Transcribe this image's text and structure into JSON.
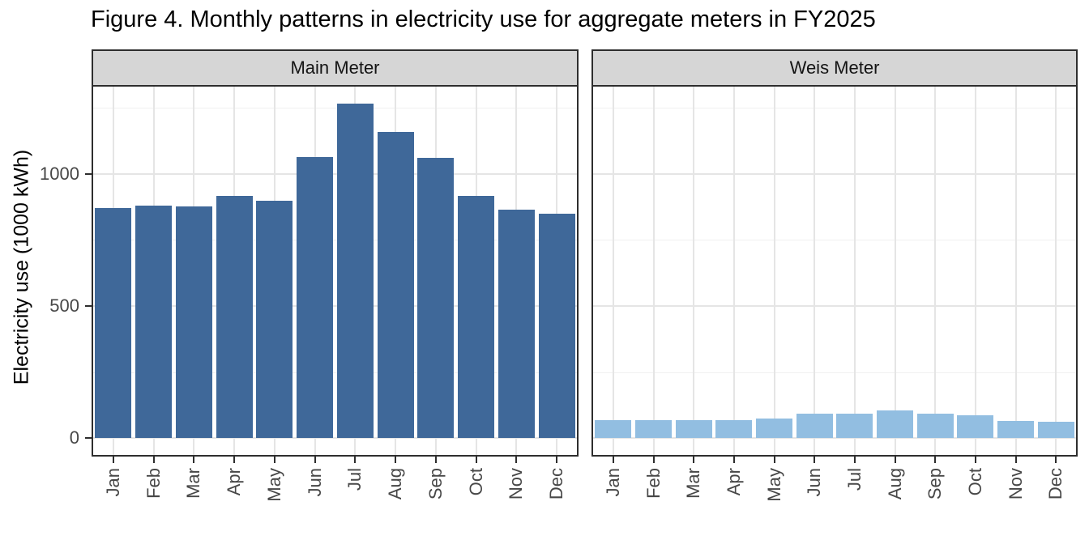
{
  "chart_data": {
    "type": "bar",
    "title": "Figure 4. Monthly patterns in electricity use for aggregate meters in FY2025",
    "ylabel": "Electricity use (1000 kWh)",
    "xlabel": "",
    "categories": [
      "Jan",
      "Feb",
      "Mar",
      "Apr",
      "May",
      "Jun",
      "Jul",
      "Aug",
      "Sep",
      "Oct",
      "Nov",
      "Dec"
    ],
    "series": [
      {
        "name": "Main Meter",
        "color": "#3f6899",
        "values": [
          870,
          880,
          878,
          918,
          898,
          1065,
          1267,
          1159,
          1062,
          917,
          866,
          849
        ]
      },
      {
        "name": "Weis Meter",
        "color": "#92bee1",
        "values": [
          68,
          69,
          69,
          69,
          74,
          94,
          94,
          105,
          92,
          86,
          66,
          63
        ]
      }
    ],
    "yticks": [
      0,
      500,
      1000
    ],
    "ytick_labels": [
      "0",
      "500",
      "1000"
    ],
    "yticks_minor": [
      250,
      750,
      1250
    ],
    "ylim": [
      -63.4,
      1330.4
    ],
    "bar_width_fraction": 0.9,
    "grid": "major-and-minor-horizontal, major-vertical",
    "legend": "none",
    "facet_layout": "two panels side by side with gray strip headers"
  },
  "style": {
    "background": "#ffffff",
    "panel_background": "#ffffff",
    "strip_fill": "#d6d6d6",
    "border_color": "#2e2e2e",
    "grid_major_color": "#e5e5e5",
    "grid_minor_color": "#f0f0f0",
    "axis_text_color": "#474747",
    "title_color": "#000000"
  }
}
